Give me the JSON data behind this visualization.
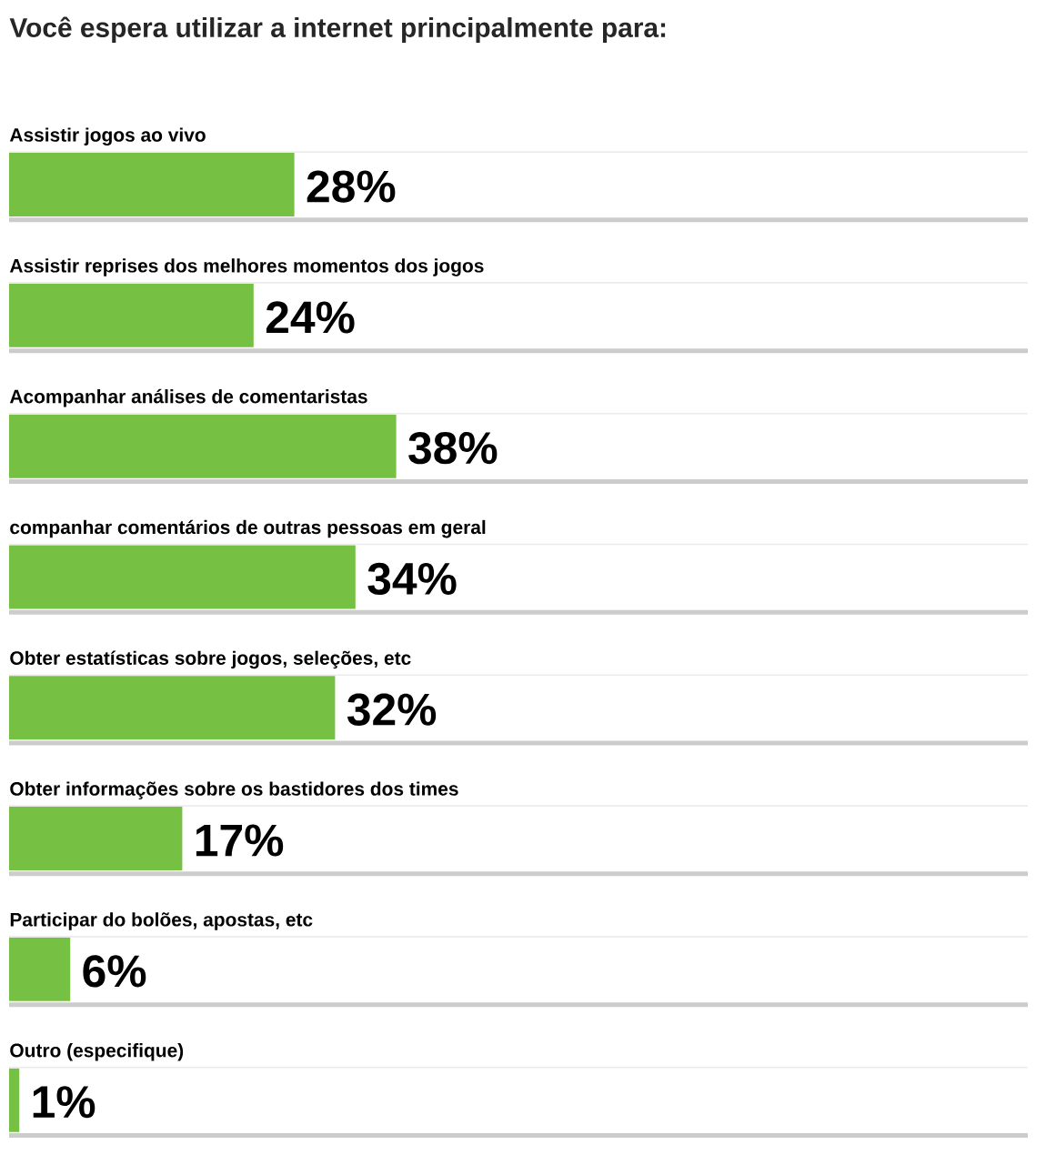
{
  "chart_data": {
    "type": "bar",
    "orientation": "horizontal",
    "title": "Você espera utilizar a internet principalmente para:",
    "categories": [
      "Assistir jogos ao vivo",
      "Assistir reprises dos melhores momentos dos jogos",
      "Acompanhar análises de comentaristas",
      "companhar comentários de outras pessoas em geral",
      "Obter estatísticas sobre jogos, seleções, etc",
      "Obter informações sobre os bastidores dos times",
      "Participar do bolões, apostas, etc",
      "Outro (especifique)"
    ],
    "values": [
      28,
      24,
      38,
      34,
      32,
      17,
      6,
      1
    ],
    "value_labels": [
      "28%",
      "24%",
      "38%",
      "34%",
      "32%",
      "17%",
      "6%",
      "1%"
    ],
    "color": "#76c043",
    "xlim": [
      0,
      100
    ]
  }
}
